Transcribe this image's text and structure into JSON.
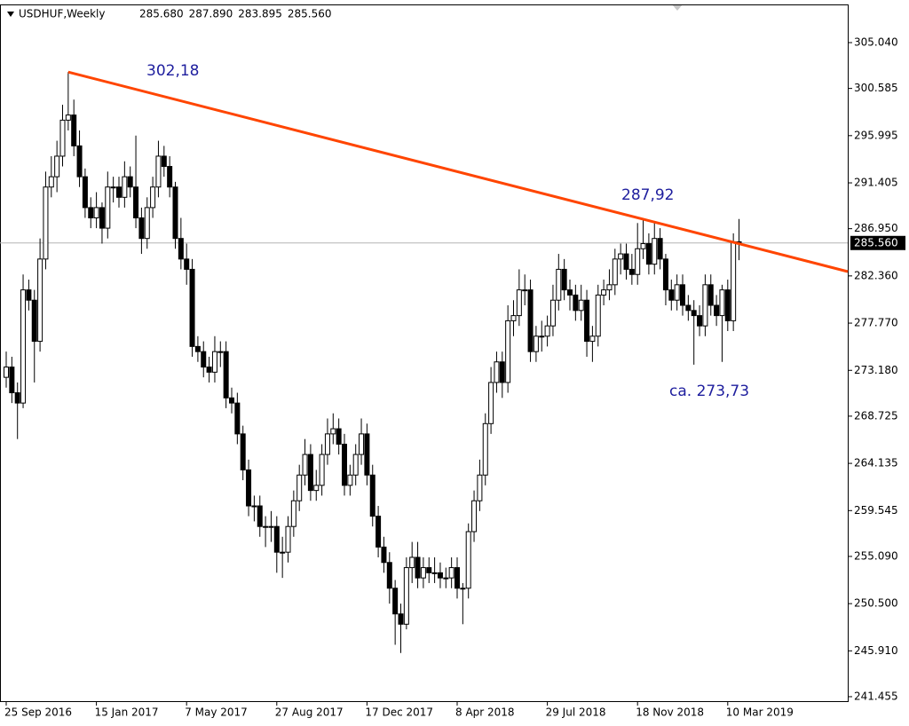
{
  "chart_data": {
    "type": "candlestick",
    "title": "USDHUF,Weekly",
    "header_values": [
      "285.680",
      "287.890",
      "283.895",
      "285.560"
    ],
    "categories": [
      "25 Sep 2016",
      null,
      null,
      null,
      null,
      null,
      null,
      null,
      null,
      null,
      null,
      null,
      null,
      null,
      null,
      null,
      "15 Jan 2017",
      null,
      null,
      null,
      null,
      null,
      null,
      null,
      null,
      null,
      null,
      null,
      null,
      null,
      null,
      null,
      "7 May 2017",
      null,
      null,
      null,
      null,
      null,
      null,
      null,
      null,
      null,
      null,
      null,
      null,
      null,
      null,
      null,
      "27 Aug 2017",
      null,
      null,
      null,
      null,
      null,
      null,
      null,
      null,
      null,
      null,
      null,
      null,
      null,
      null,
      null,
      "17 Dec 2017",
      null,
      null,
      null,
      null,
      null,
      null,
      null,
      null,
      null,
      null,
      null,
      null,
      null,
      null,
      null,
      "8 Apr 2018",
      null,
      null,
      null,
      null,
      null,
      null,
      null,
      null,
      null,
      null,
      null,
      null,
      null,
      null,
      null,
      "29 Jul 2018",
      null,
      null,
      null,
      null,
      null,
      null,
      null,
      null,
      null,
      null,
      null,
      null,
      null,
      null,
      null,
      "18 Nov 2018",
      null,
      null,
      null,
      null,
      null,
      null,
      null,
      null,
      null,
      null,
      null,
      null,
      null,
      null,
      null,
      "10 Mar 2019",
      null,
      null
    ],
    "open": [
      272.5,
      273.5,
      271,
      270,
      281,
      280,
      276,
      284,
      291,
      292,
      294,
      297.5,
      298,
      295,
      292,
      289,
      288,
      289,
      287,
      291,
      291,
      290,
      292,
      291,
      288,
      286,
      289,
      291,
      294,
      293,
      291,
      286,
      284,
      283,
      275.5,
      275,
      273.5,
      273,
      275,
      275,
      270.5,
      270,
      267,
      263.5,
      260,
      260,
      258,
      258,
      258,
      255.5,
      255.5,
      258,
      260.5,
      263,
      265,
      261.5,
      262,
      265,
      267,
      267.5,
      266,
      262,
      263,
      265,
      267,
      263,
      259,
      256,
      254.5,
      252,
      249.5,
      248.5,
      254,
      255,
      253,
      254,
      253.5,
      253.5,
      253,
      253,
      254,
      252,
      252,
      257.5,
      260.5,
      263,
      268,
      272,
      274,
      272,
      278,
      278.5,
      281,
      281,
      275,
      276.5,
      276.5,
      277.5,
      280,
      283,
      281,
      280.5,
      279,
      280,
      276,
      276.5,
      280.5,
      281,
      281.5,
      284,
      284.5,
      283,
      282.5,
      285,
      285.5,
      283.5,
      286,
      284,
      281,
      280,
      281.5,
      279.5,
      279,
      278.5,
      277.5,
      281.5,
      279.5,
      278.5,
      281,
      278,
      285.68
    ],
    "high": [
      275,
      274.5,
      272,
      282.5,
      282,
      281,
      286,
      292.5,
      294,
      295.5,
      299,
      302.18,
      299.5,
      296.5,
      292.8,
      290,
      290.5,
      289.5,
      292.5,
      292,
      292,
      293.5,
      293,
      296,
      289,
      290,
      292,
      295.5,
      295,
      294,
      291.5,
      288,
      285.5,
      284,
      276.5,
      276,
      274.5,
      276.5,
      276,
      276,
      271.5,
      271,
      267.8,
      264.5,
      261,
      261,
      259,
      259.5,
      259,
      257,
      259,
      261.5,
      264,
      266.5,
      266,
      263.5,
      266,
      268.5,
      269,
      268.5,
      267,
      264,
      266,
      268.5,
      268,
      264,
      260,
      257,
      255.5,
      252.8,
      250.5,
      255,
      256.5,
      256.5,
      255,
      255,
      255,
      254.5,
      254,
      255,
      255,
      252.5,
      258.3,
      261.5,
      264.5,
      269,
      273.5,
      275,
      275,
      279.5,
      280,
      283,
      282.5,
      282,
      277.5,
      278,
      278.5,
      281.5,
      284.5,
      284,
      282,
      281.5,
      281.5,
      281,
      277.5,
      281.5,
      282,
      283,
      285,
      285.5,
      285.5,
      284.5,
      287.5,
      287.92,
      286.5,
      287.5,
      287,
      284.5,
      282,
      282.5,
      282.5,
      280.5,
      280,
      279.5,
      282.5,
      282.5,
      280.5,
      281.5,
      282,
      286.5,
      287.89
    ],
    "low": [
      271.5,
      270,
      266.5,
      269.5,
      279,
      272,
      275,
      283,
      290,
      290.5,
      293,
      296.5,
      294,
      291,
      288,
      287,
      287,
      285.5,
      286,
      289.5,
      289,
      289,
      290,
      287,
      284.5,
      285,
      288,
      290,
      292,
      290,
      285,
      283,
      281.5,
      274.5,
      274,
      272.5,
      272,
      272,
      273.5,
      269.5,
      269,
      266,
      262.5,
      259,
      258.5,
      257,
      256,
      256.5,
      253.5,
      253,
      254.5,
      257,
      259.5,
      262,
      260.5,
      260.5,
      261,
      264,
      266,
      265,
      261,
      261,
      262,
      264,
      262,
      258,
      255,
      253.5,
      250.5,
      246.5,
      245.7,
      248,
      252.5,
      252,
      252,
      252.5,
      252.5,
      252,
      252,
      252,
      251,
      248.5,
      251,
      256.5,
      259.5,
      262,
      267,
      271,
      270.5,
      271,
      276.5,
      277.5,
      279.5,
      274,
      274,
      275,
      275.5,
      276.5,
      279,
      280,
      279,
      278,
      278,
      274.5,
      274,
      275.5,
      279.5,
      280,
      280.5,
      282.5,
      282,
      281.5,
      281.5,
      284,
      282.5,
      282.5,
      283,
      279.5,
      279,
      279,
      278.5,
      278,
      273.73,
      276.5,
      276.5,
      278.5,
      277.5,
      274,
      277,
      277,
      283.895
    ],
    "close": [
      273.5,
      271,
      270,
      281,
      280,
      276,
      284,
      291,
      292,
      294,
      297.5,
      298,
      295,
      292,
      289,
      288,
      289,
      287,
      291,
      291,
      290,
      292,
      291,
      288,
      286,
      289,
      291,
      294,
      293,
      291,
      286,
      284,
      283,
      275.5,
      275,
      273.5,
      273,
      275,
      275,
      270.5,
      270,
      267,
      263.5,
      260,
      260,
      258,
      258,
      258,
      255.5,
      255.5,
      258,
      260.5,
      263,
      265,
      261.5,
      262,
      265,
      267,
      267.5,
      266,
      262,
      263,
      265,
      267,
      263,
      259,
      256,
      254.5,
      252,
      249.5,
      248.5,
      254,
      255,
      253,
      254,
      253.5,
      253.5,
      253,
      253,
      254,
      252,
      252,
      257.5,
      260.5,
      263,
      268,
      272,
      274,
      272,
      278,
      278.5,
      281,
      281,
      275,
      276.5,
      276.5,
      277.5,
      280,
      283,
      281,
      280.5,
      279,
      280,
      276,
      276.5,
      280.5,
      281,
      281.5,
      284,
      284.5,
      283,
      282.5,
      285,
      285.5,
      283.5,
      286,
      284,
      281,
      280,
      281.5,
      279.5,
      279,
      278.5,
      277.5,
      281.5,
      279.5,
      278.5,
      281,
      278,
      285.68,
      285.56
    ],
    "up_color": "#ffffff",
    "down_color": "#000000",
    "ylim": [
      241.02,
      308.75
    ],
    "yticks": [
      {
        "value": 241.455,
        "label": "241.455"
      },
      {
        "value": 245.91,
        "label": "245.910"
      },
      {
        "value": 250.5,
        "label": "250.500"
      },
      {
        "value": 255.09,
        "label": "255.090"
      },
      {
        "value": 259.545,
        "label": "259.545"
      },
      {
        "value": 264.135,
        "label": "264.135"
      },
      {
        "value": 268.725,
        "label": "268.725"
      },
      {
        "value": 273.18,
        "label": "273.180"
      },
      {
        "value": 277.77,
        "label": "277.770"
      },
      {
        "value": 282.36,
        "label": "282.360"
      },
      {
        "value": 286.95,
        "label": "286.950"
      },
      {
        "value": 291.405,
        "label": "291.405"
      },
      {
        "value": 295.995,
        "label": "295.995"
      },
      {
        "value": 300.585,
        "label": "300.585"
      },
      {
        "value": 305.04,
        "label": "305.040"
      }
    ],
    "current_price": {
      "value": 285.56,
      "label": "285.560"
    },
    "trendline": {
      "x": [
        11,
        149.3
      ],
      "values": [
        302.18,
        282.78
      ],
      "color": "#ff4500"
    },
    "annotations": [
      {
        "text": "302,18"
      },
      {
        "text": "287,92"
      },
      {
        "text": "ca. 273,73"
      }
    ]
  }
}
